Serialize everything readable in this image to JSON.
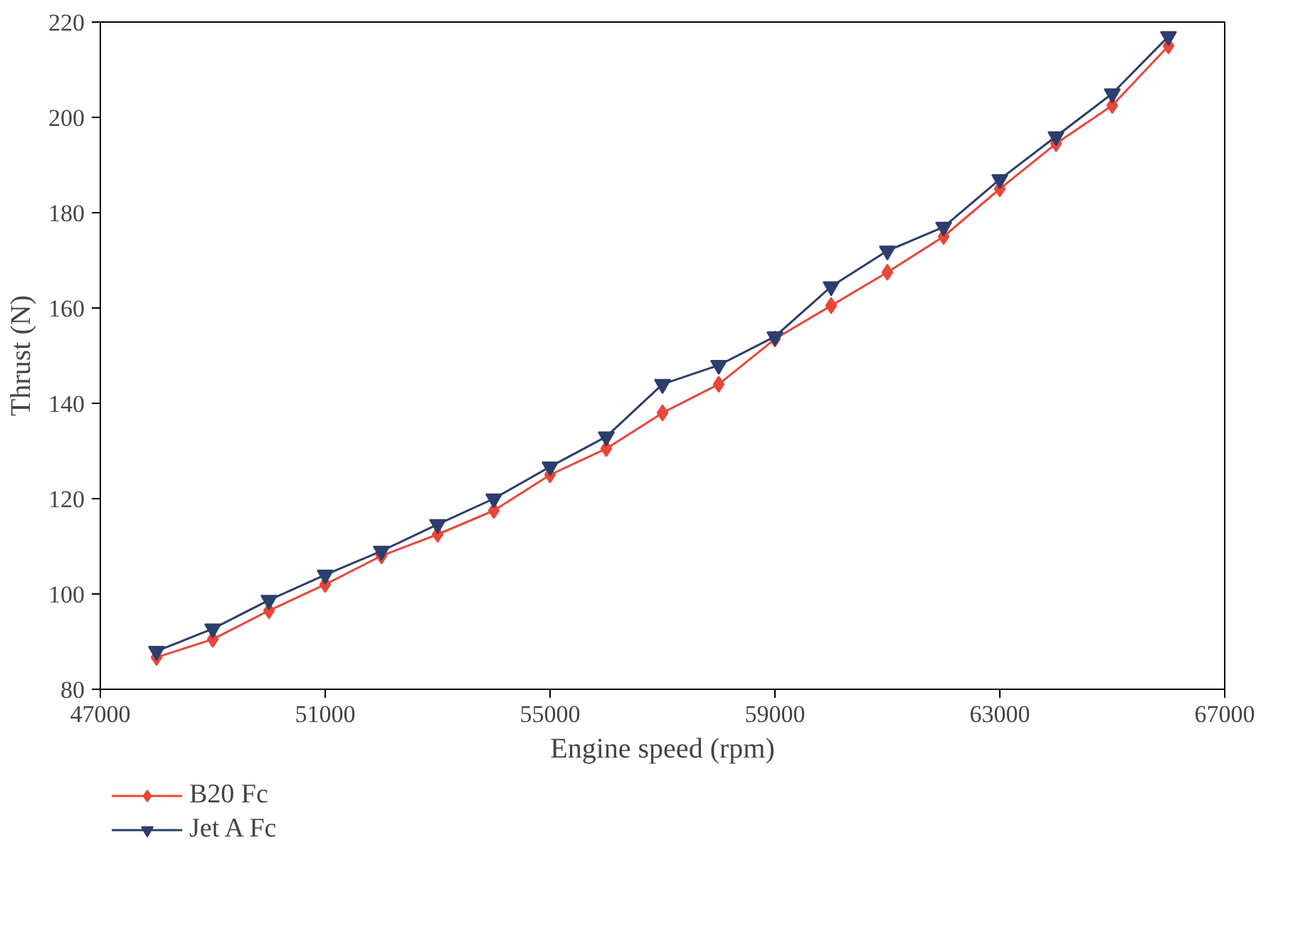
{
  "chart_data": {
    "type": "line",
    "xlabel": "Engine speed (rpm)",
    "ylabel": "Thrust (N)",
    "x": [
      48000,
      49000,
      50000,
      51000,
      52000,
      53000,
      54000,
      55000,
      56000,
      57000,
      58000,
      59000,
      60000,
      61000,
      62000,
      63000,
      64000,
      65000,
      66000
    ],
    "xlim": [
      47000,
      67000
    ],
    "xticks": [
      47000,
      51000,
      55000,
      59000,
      63000,
      67000
    ],
    "ylim": [
      80,
      220
    ],
    "yticks": [
      80,
      100,
      120,
      140,
      160,
      180,
      200,
      220
    ],
    "grid": false,
    "legend": "bottom left",
    "line_style": "solid",
    "series": [
      {
        "name": "B20 Fc",
        "color": "#e8473a",
        "marker": "diamond",
        "values": [
          86.7,
          90.5,
          96.5,
          102,
          108,
          112.5,
          117.5,
          125,
          130.5,
          138,
          144,
          153.5,
          160.5,
          167.5,
          175,
          185,
          194.5,
          202.5,
          215
        ]
      },
      {
        "name": "Jet A Fc",
        "color": "#2c3e6b",
        "marker": "triangle",
        "values": [
          88,
          92.7,
          98.7,
          104,
          109,
          114.6,
          120,
          126.7,
          133,
          144,
          148,
          154,
          164.5,
          172,
          177,
          187,
          196,
          205,
          217
        ]
      }
    ]
  }
}
